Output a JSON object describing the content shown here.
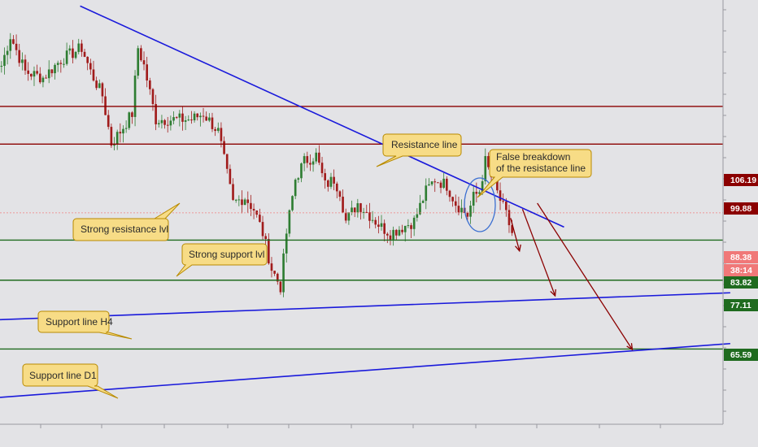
{
  "chart_data": {
    "type": "line",
    "title": "",
    "xlabel": "",
    "ylabel": "",
    "ylim": [
      53,
      124
    ],
    "grid": false,
    "price_series": {
      "description_points": [
        [
          0,
          113
        ],
        [
          3,
          118
        ],
        [
          8,
          112
        ],
        [
          14,
          111
        ],
        [
          20,
          114
        ],
        [
          27,
          116
        ],
        [
          30,
          112
        ],
        [
          34,
          108
        ],
        [
          37,
          100
        ],
        [
          40,
          102
        ],
        [
          44,
          105
        ],
        [
          46,
          116
        ],
        [
          48,
          113
        ],
        [
          52,
          104
        ],
        [
          55,
          104
        ],
        [
          60,
          104
        ],
        [
          64,
          104
        ],
        [
          68,
          105
        ],
        [
          73,
          102
        ],
        [
          78,
          90
        ],
        [
          82,
          91
        ],
        [
          85,
          89
        ],
        [
          88,
          85
        ],
        [
          91,
          79
        ],
        [
          94,
          76
        ],
        [
          96,
          85
        ],
        [
          99,
          94
        ],
        [
          102,
          97
        ],
        [
          106,
          98
        ],
        [
          109,
          93
        ],
        [
          112,
          94
        ],
        [
          114,
          92
        ],
        [
          116,
          87
        ],
        [
          120,
          90
        ],
        [
          124,
          88
        ],
        [
          128,
          86
        ],
        [
          131,
          85
        ],
        [
          135,
          86
        ],
        [
          139,
          87
        ],
        [
          143,
          92
        ],
        [
          146,
          94
        ],
        [
          150,
          93
        ],
        [
          153,
          90
        ],
        [
          157,
          88
        ],
        [
          159,
          91
        ],
        [
          161,
          92
        ],
        [
          163,
          97
        ],
        [
          166,
          93
        ],
        [
          170,
          88
        ],
        [
          172,
          85
        ]
      ],
      "x_unit": "bar index"
    },
    "horizontal_levels": [
      {
        "value": 106.19,
        "label": "106.19",
        "color": "#8b0000",
        "role": "resistance"
      },
      {
        "value": 99.88,
        "label": "99.88",
        "color": "#8b0000",
        "role": "resistance"
      },
      {
        "value": 88.38,
        "label": "88.38",
        "color": "#f08080",
        "role": "current-price"
      },
      {
        "value": 83.82,
        "label": "83.82",
        "color": "#1f6b1f",
        "role": "support"
      },
      {
        "value": 77.11,
        "label": "77.11",
        "color": "#1f6b1f",
        "role": "support"
      },
      {
        "value": 65.59,
        "label": "65.59",
        "color": "#1f6b1f",
        "role": "support"
      }
    ],
    "timer_label": "38:14",
    "trend_lines": [
      {
        "name": "Resistance line",
        "color": "#1a1adb",
        "from": [
          27,
          123
        ],
        "to": [
          190,
          86
        ]
      },
      {
        "name": "Support line H4",
        "color": "#1a1adb",
        "from": [
          0,
          70.5
        ],
        "to": [
          246,
          75
        ]
      },
      {
        "name": "Support line D1",
        "color": "#1a1adb",
        "from": [
          0,
          57.5
        ],
        "to": [
          246,
          66.5
        ]
      }
    ],
    "projection_arrows": [
      {
        "from": [
          172,
          87.5
        ],
        "to": [
          175,
          82
        ]
      },
      {
        "from": [
          176,
          89
        ],
        "to": [
          187,
          74.5
        ]
      },
      {
        "from": [
          181,
          90
        ],
        "to": [
          213,
          65.5
        ]
      }
    ],
    "annotations": [
      "Resistance line",
      "False breakdown\nof the resistance line",
      "Strong resistance lvl",
      "Strong support lvl",
      "Support line H4",
      "Support line D1"
    ]
  },
  "callouts": {
    "resistance_line": "Resistance line",
    "false_breakdown_1": "False breakdown",
    "false_breakdown_2": "of the resistance line",
    "strong_resistance": "Strong resistance lvl",
    "strong_support": "Strong support lvl",
    "support_h4": "Support line H4",
    "support_d1": "Support line D1"
  },
  "price_labels": {
    "p106": "106.19",
    "p99": "99.88",
    "p88": "88.38",
    "timer": "38:14",
    "p83": "83.82",
    "p77": "77.11",
    "p65": "65.59"
  },
  "colors": {
    "background": "#e3e3e6",
    "resistance": "#8b0000",
    "support": "#1f6b1f",
    "trend": "#1a1adb",
    "candle_up": "#2e7d32",
    "candle_down": "#a11c1c",
    "callout_fill": "#f7dc86",
    "callout_stroke": "#b88a00"
  }
}
